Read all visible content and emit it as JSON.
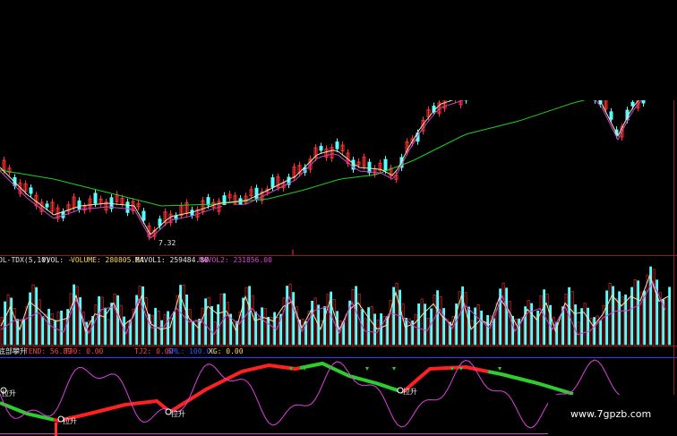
{
  "colors": {
    "up": "#ff3232",
    "down": "#54ffff",
    "ma_slow": "#1fcf1f",
    "ma_mid": "#cc44cc",
    "ma_fast": "#e6e6b0",
    "divider": "#8b1a1a",
    "label_main": "#e6e6e6",
    "label_yellow": "#ffd84d",
    "label_magenta": "#e040e0",
    "label_red": "#ff4040",
    "label_blue": "#3355ff"
  },
  "price_panel": {
    "low_marker": "7.32"
  },
  "volume_panel": {
    "indicator_name": "OL-TDX(5,10)",
    "vvol": "VVOL: -",
    "volume": "VOLUME: 280805.84",
    "mavol1": "MAVOL1: 259484.80",
    "mavol2": "MAVOL2: 231856.00"
  },
  "trend_panel": {
    "indicator_name": "底部攀升",
    "tend": "TEND: 56.89",
    "tj0": "TJ0: 0.00",
    "tj2": "TJ2: 0.00",
    "mid_label": "SML: 100.00",
    "xg": "XG: 0.00",
    "signal_label": "拉升"
  },
  "watermark": {
    "text": "www.7gpzb.com"
  }
}
